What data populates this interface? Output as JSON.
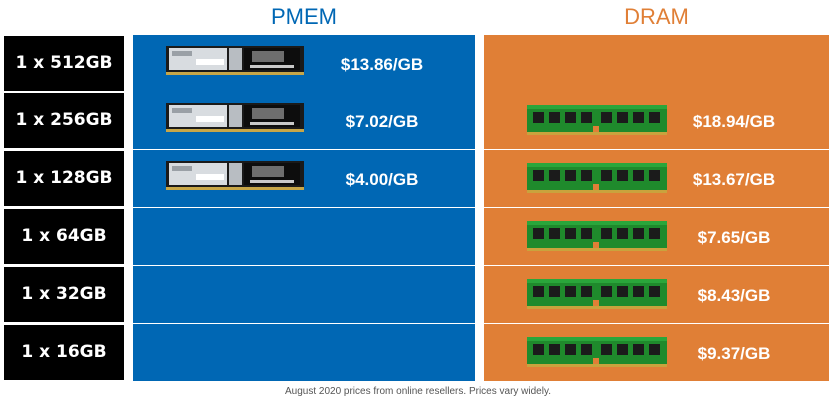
{
  "headers": {
    "pmem": {
      "label": "PMEM",
      "color": "#0067b4"
    },
    "dram": {
      "label": "DRAM",
      "color": "#e07f36"
    }
  },
  "chart_data": {
    "type": "table",
    "columns": [
      "PMEM",
      "DRAM"
    ],
    "rows": [
      {
        "label": "1 x 512GB",
        "pmem": "$13.86/GB",
        "dram": null
      },
      {
        "label": "1 x 256GB",
        "pmem": "$7.02/GB",
        "dram": "$18.94/GB"
      },
      {
        "label": "1 x 128GB",
        "pmem": "$4.00/GB",
        "dram": "$13.67/GB"
      },
      {
        "label": "1 x 64GB",
        "pmem": null,
        "dram": "$7.65/GB"
      },
      {
        "label": "1 x 32GB",
        "pmem": null,
        "dram": "$8.43/GB"
      },
      {
        "label": "1 x 16GB",
        "pmem": null,
        "dram": "$9.37/GB"
      }
    ],
    "units": "$/GB"
  },
  "icons": {
    "pmem_module": "pmem-module-icon",
    "dram_module": "dram-module-icon"
  },
  "footer": "August 2020 prices from online resellers. Prices vary widely."
}
